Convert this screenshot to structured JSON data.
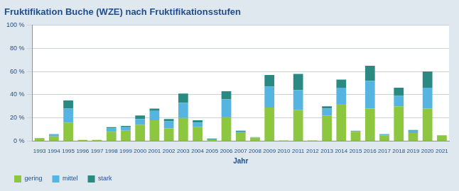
{
  "chart_data": {
    "type": "bar",
    "title": "Fruktifikation Buche (WZE) nach Fruktifikationsstufen",
    "x_label": "Jahr",
    "categories": [
      "1993",
      "1994",
      "1995",
      "1996",
      "1997",
      "1998",
      "1999",
      "2000",
      "2001",
      "2002",
      "2003",
      "2004",
      "2005",
      "2006",
      "2007",
      "2008",
      "2009",
      "2010",
      "2011",
      "2012",
      "2013",
      "2014",
      "2015",
      "2016",
      "2017",
      "2018",
      "2019",
      "2020",
      "2021"
    ],
    "series": [
      {
        "name": "gering",
        "color": "#8dc63f",
        "values": [
          2,
          4,
          16,
          1,
          1,
          8,
          9,
          14,
          18,
          11,
          20,
          12,
          1,
          21,
          7,
          3,
          29,
          0.5,
          27,
          0.5,
          22,
          32,
          8,
          28,
          5,
          30,
          7,
          28,
          5
        ]
      },
      {
        "name": "mittel",
        "color": "#56b4e0",
        "values": [
          0.5,
          2,
          12,
          0,
          0,
          3,
          3,
          5,
          8,
          6,
          13,
          4,
          0.5,
          15,
          1,
          0.5,
          18,
          0,
          17,
          0,
          6,
          14,
          1,
          24,
          1,
          9,
          2,
          18,
          0
        ]
      },
      {
        "name": "stark",
        "color": "#2a8a82",
        "values": [
          0,
          0,
          7,
          0,
          0,
          1,
          1,
          3,
          2,
          2,
          8,
          2,
          0.5,
          7,
          1,
          0,
          10,
          0,
          14,
          0,
          2,
          7,
          0,
          13,
          0,
          7,
          0.5,
          14,
          0
        ]
      }
    ],
    "ylim": [
      0,
      100
    ],
    "yticks": [
      {
        "value": 0,
        "label": "0 %"
      },
      {
        "value": 20,
        "label": "20 %"
      },
      {
        "value": 40,
        "label": "40 %"
      },
      {
        "value": 60,
        "label": "60 %"
      },
      {
        "value": 80,
        "label": "80 %"
      },
      {
        "value": 100,
        "label": "100 %"
      }
    ],
    "stacked": true,
    "grid": true,
    "legend": "bottom-left"
  }
}
